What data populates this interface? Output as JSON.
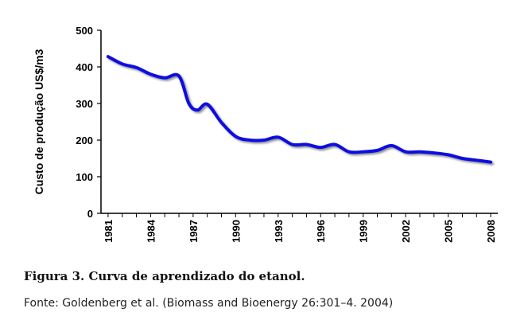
{
  "chart_data": {
    "type": "line",
    "title": "",
    "xlabel": "",
    "ylabel": "Custo de produção US$/m3",
    "ylim": [
      0,
      500
    ],
    "yticks": [
      0,
      100,
      200,
      300,
      400,
      500
    ],
    "xlim": [
      1980.5,
      2008.5
    ],
    "xticks": [
      1981,
      1984,
      1987,
      1990,
      1993,
      1996,
      1999,
      2002,
      2005,
      2008
    ],
    "grid": false,
    "legend": "none",
    "series": [
      {
        "color": "#1010e0",
        "x": [
          1981,
          1982,
          1983,
          1984,
          1985,
          1986,
          1986.7,
          1987.3,
          1988,
          1989,
          1990,
          1991,
          1992,
          1993,
          1994,
          1995,
          1996,
          1997,
          1998,
          1999,
          2000,
          2001,
          2002,
          2003,
          2004,
          2005,
          2006,
          2007,
          2008
        ],
        "y": [
          428,
          408,
          398,
          380,
          370,
          375,
          300,
          282,
          298,
          248,
          210,
          200,
          200,
          208,
          188,
          188,
          180,
          188,
          168,
          168,
          172,
          185,
          168,
          168,
          165,
          160,
          150,
          145,
          140
        ]
      }
    ]
  },
  "caption": "Figura 3. Curva de aprendizado do etanol.",
  "source": "Fonte: Goldenberg et al. (Biomass and Bioenergy 26:301–4. 2004)"
}
